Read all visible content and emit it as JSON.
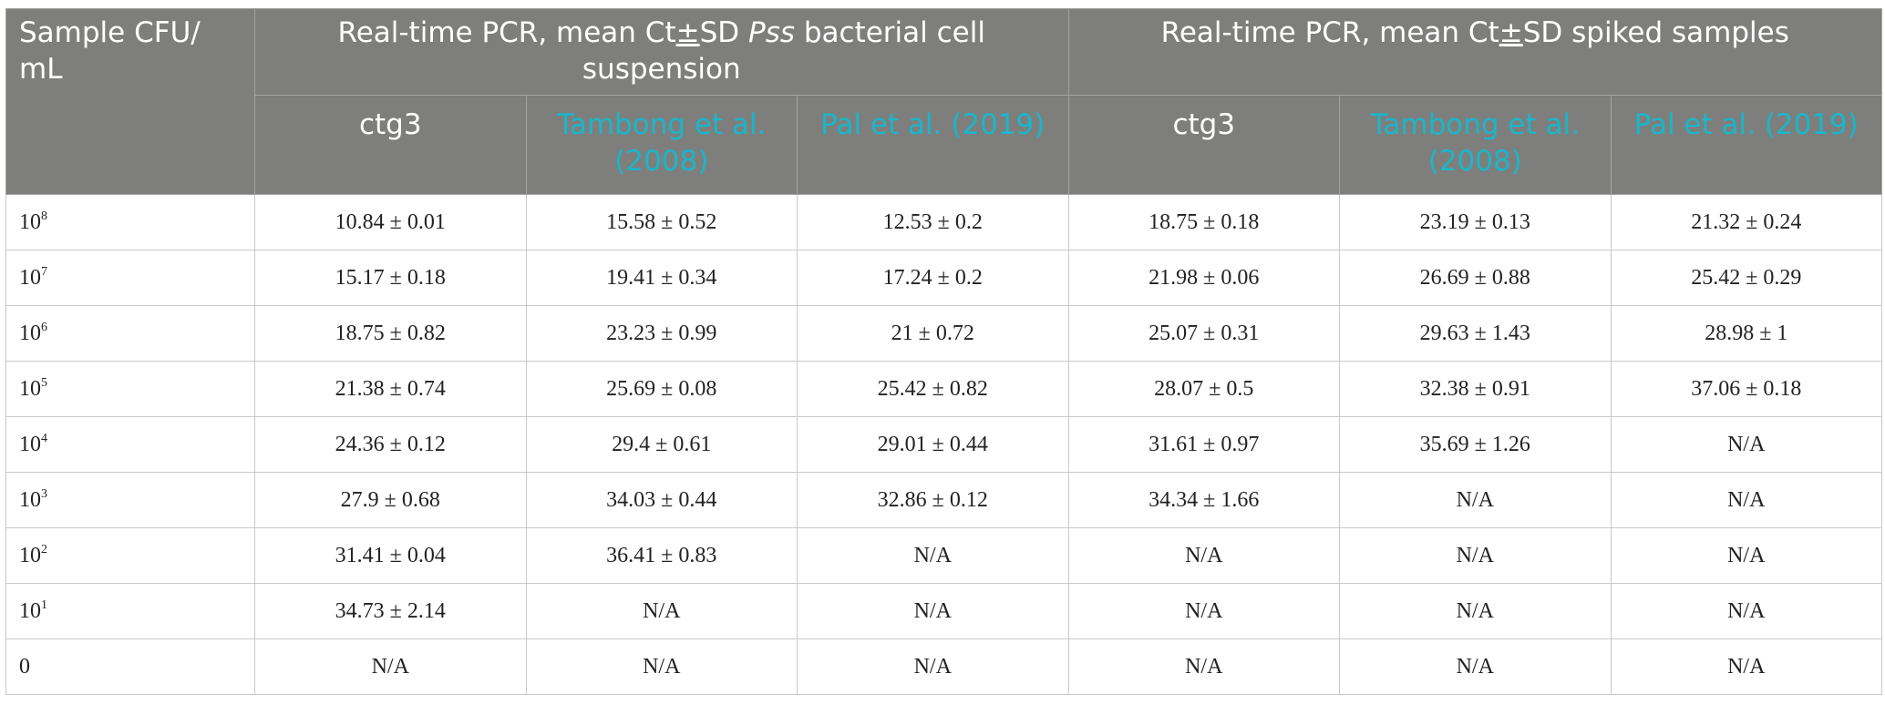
{
  "header": {
    "sample_col": "Sample CFU/ mL",
    "group1": {
      "prefix": "Real-time PCR, mean Ct",
      "pm": "±",
      "mid": "SD ",
      "italic": "Pss",
      "suffix": " bacterial cell suspension"
    },
    "group2": {
      "prefix": "Real-time PCR, mean Ct",
      "pm": "±",
      "suffix": "SD spiked samples"
    },
    "sub_columns": [
      "ctg3",
      "Tambong et al. (2008)",
      "Pal et al. (2019)",
      "ctg3",
      "Tambong et al. (2008)",
      "Pal et al. (2019)"
    ]
  },
  "rows": [
    {
      "sample_base": "10",
      "sample_exp": "8",
      "values": [
        "10.84 ± 0.01",
        "15.58 ± 0.52",
        "12.53 ± 0.2",
        "18.75 ± 0.18",
        "23.19 ± 0.13",
        "21.32 ± 0.24"
      ]
    },
    {
      "sample_base": "10",
      "sample_exp": "7",
      "values": [
        "15.17 ± 0.18",
        "19.41 ± 0.34",
        "17.24 ± 0.2",
        "21.98 ± 0.06",
        "26.69 ± 0.88",
        "25.42 ± 0.29"
      ]
    },
    {
      "sample_base": "10",
      "sample_exp": "6",
      "values": [
        "18.75 ± 0.82",
        "23.23 ± 0.99",
        "21 ± 0.72",
        "25.07 ± 0.31",
        "29.63 ± 1.43",
        "28.98 ± 1"
      ]
    },
    {
      "sample_base": "10",
      "sample_exp": "5",
      "values": [
        "21.38 ± 0.74",
        "25.69 ± 0.08",
        "25.42 ± 0.82",
        "28.07 ± 0.5",
        "32.38 ± 0.91",
        "37.06 ± 0.18"
      ]
    },
    {
      "sample_base": "10",
      "sample_exp": "4",
      "values": [
        "24.36 ± 0.12",
        "29.4 ± 0.61",
        "29.01 ± 0.44",
        "31.61 ± 0.97",
        "35.69 ± 1.26",
        "N/A"
      ]
    },
    {
      "sample_base": "10",
      "sample_exp": "3",
      "values": [
        "27.9 ± 0.68",
        "34.03 ± 0.44",
        "32.86 ± 0.12",
        "34.34 ± 1.66",
        "N/A",
        "N/A"
      ]
    },
    {
      "sample_base": "10",
      "sample_exp": "2",
      "values": [
        "31.41 ± 0.04",
        "36.41 ± 0.83",
        "N/A",
        "N/A",
        "N/A",
        "N/A"
      ]
    },
    {
      "sample_base": "10",
      "sample_exp": "1",
      "values": [
        "34.73 ± 2.14",
        "N/A",
        "N/A",
        "N/A",
        "N/A",
        "N/A"
      ]
    },
    {
      "sample_base": "0",
      "sample_exp": "",
      "values": [
        "N/A",
        "N/A",
        "N/A",
        "N/A",
        "N/A",
        "N/A"
      ]
    }
  ],
  "colors": {
    "header_bg": "#7e7f7d",
    "header_text": "#ffffff",
    "reference_link": "#1ab6c9",
    "body_text": "#222222",
    "grid_line": "#c9c9c9"
  }
}
